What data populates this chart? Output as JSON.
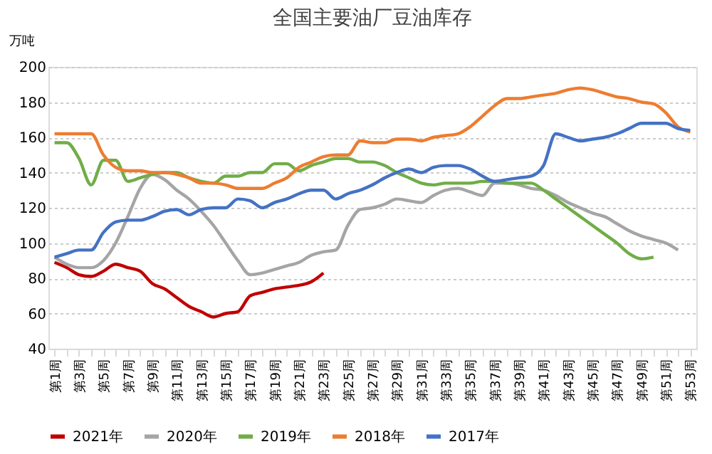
{
  "chart_data": {
    "type": "line",
    "title": "全国主要油厂豆油库存",
    "ylabel": "万吨",
    "categories": [
      "第1周",
      null,
      "第3周",
      null,
      "第5周",
      null,
      "第7周",
      null,
      "第9周",
      null,
      "第11周",
      null,
      "第13周",
      null,
      "第15周",
      null,
      "第17周",
      null,
      "第19周",
      null,
      "第21周",
      null,
      "第23周",
      null,
      "第25周",
      null,
      "第27周",
      null,
      "第29周",
      null,
      "第31周",
      null,
      "第33周",
      null,
      "第35周",
      null,
      "第37周",
      null,
      "第39周",
      null,
      "第41周",
      null,
      "第43周",
      null,
      "第45周",
      null,
      "第47周",
      null,
      "第49周",
      null,
      "第51周",
      null,
      "第53周"
    ],
    "series": [
      {
        "name": "2021年",
        "color": "#c00000",
        "values": [
          89,
          86,
          82,
          81,
          84,
          88,
          86,
          84,
          77,
          74,
          69,
          64,
          61,
          58,
          60,
          61,
          70,
          72,
          74,
          75,
          76,
          78,
          83,
          null,
          null,
          null,
          null,
          null,
          null,
          null,
          null,
          null,
          null,
          null,
          null,
          null,
          null,
          null,
          null,
          null,
          null,
          null,
          null,
          null,
          null,
          null,
          null,
          null,
          null,
          null,
          null,
          null,
          null
        ]
      },
      {
        "name": "2020年",
        "color": "#a5a5a5",
        "values": [
          92,
          88,
          86,
          86,
          90,
          100,
          115,
          131,
          139,
          136,
          130,
          125,
          118,
          110,
          100,
          90,
          82,
          83,
          85,
          87,
          89,
          93,
          95,
          96,
          110,
          119,
          120,
          122,
          125,
          124,
          123,
          127,
          130,
          131,
          129,
          127,
          134,
          134,
          133,
          131,
          130,
          127,
          123,
          120,
          117,
          115,
          111,
          107,
          104,
          102,
          100,
          96,
          null
        ]
      },
      {
        "name": "2019年",
        "color": "#70ad47",
        "values": [
          157,
          157,
          148,
          133,
          147,
          147,
          135,
          137,
          139,
          140,
          140,
          137,
          135,
          134,
          138,
          138,
          140,
          140,
          145,
          145,
          141,
          144,
          146,
          148,
          148,
          146,
          146,
          144,
          140,
          137,
          134,
          133,
          134,
          134,
          134,
          135,
          135,
          134,
          134,
          134,
          130,
          125,
          120,
          115,
          110,
          105,
          100,
          94,
          91,
          92,
          null,
          null,
          null
        ]
      },
      {
        "name": "2018年",
        "color": "#ed7d31",
        "values": [
          162,
          162,
          162,
          162,
          150,
          143,
          141,
          141,
          140,
          140,
          139,
          137,
          134,
          134,
          133,
          131,
          131,
          131,
          134,
          137,
          143,
          146,
          149,
          150,
          150,
          158,
          157,
          157,
          159,
          159,
          158,
          160,
          161,
          162,
          166,
          172,
          178,
          182,
          182,
          183,
          184,
          185,
          187,
          188,
          187,
          185,
          183,
          182,
          180,
          179,
          174,
          166,
          163
        ]
      },
      {
        "name": "2017年",
        "color": "#4472c4",
        "values": [
          92,
          94,
          96,
          96,
          106,
          112,
          113,
          113,
          115,
          118,
          119,
          116,
          119,
          120,
          120,
          125,
          124,
          120,
          123,
          125,
          128,
          130,
          130,
          125,
          128,
          130,
          133,
          137,
          140,
          142,
          140,
          143,
          144,
          144,
          142,
          138,
          135,
          136,
          137,
          138,
          144,
          162,
          160,
          158,
          159,
          160,
          162,
          165,
          168,
          168,
          168,
          165,
          164
        ]
      }
    ],
    "ylim": [
      40,
      200
    ],
    "yticks": [
      40,
      60,
      80,
      100,
      120,
      140,
      160,
      180,
      200
    ],
    "grid": "y",
    "legend": "bottom",
    "line_style": "solid"
  }
}
